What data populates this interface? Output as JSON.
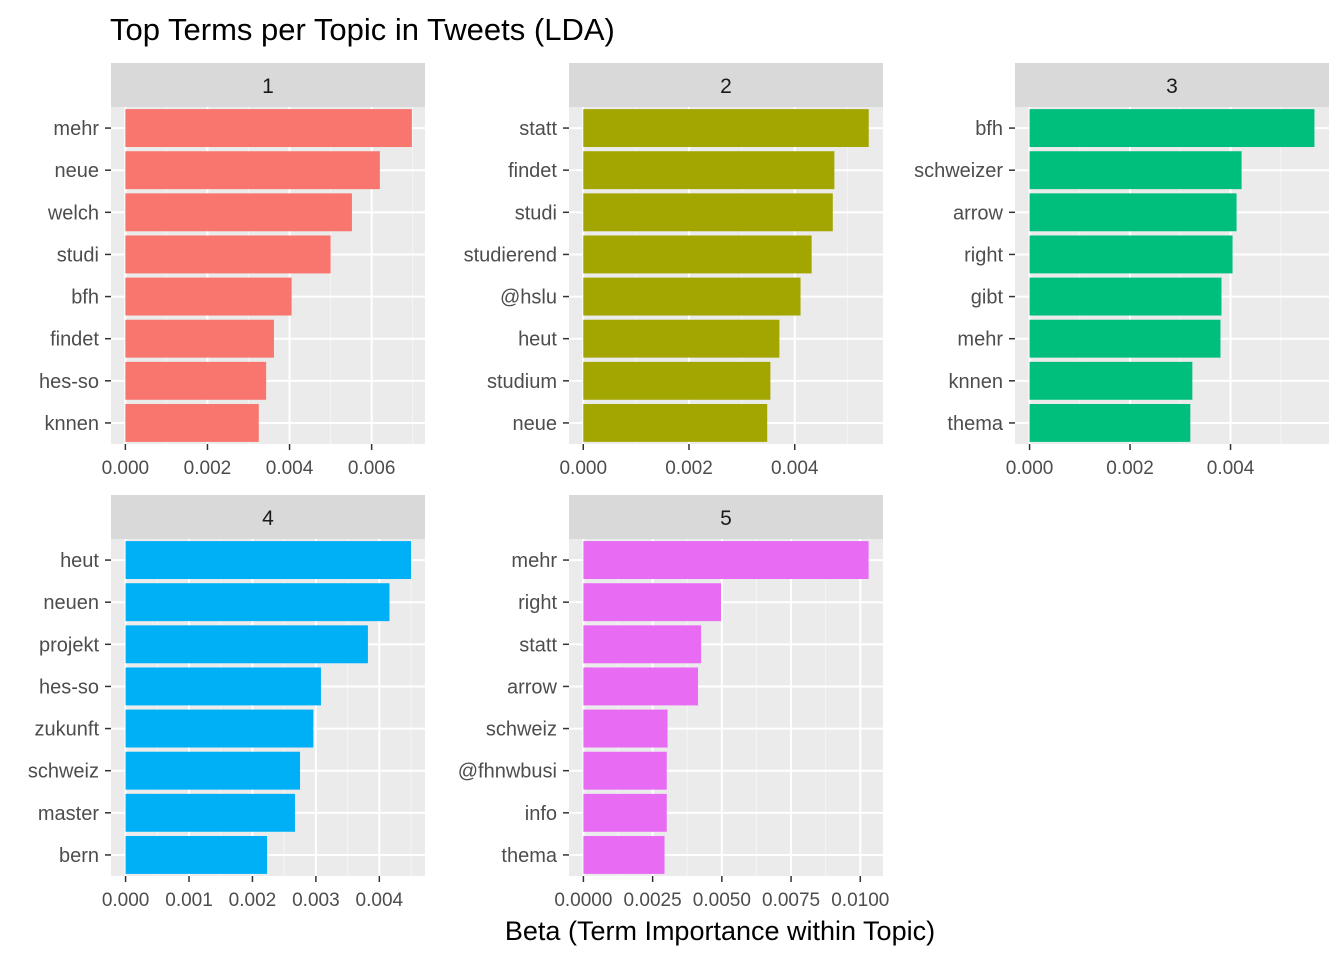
{
  "chart_data": {
    "type": "bar",
    "orientation": "horizontal",
    "title": "Top Terms per Topic in Tweets (LDA)",
    "xlabel": "Beta (Term Importance within Topic)",
    "ylabel": "",
    "legend": "none",
    "grid": true,
    "panels": [
      {
        "label": "1",
        "color": "#F8766D",
        "xlim": [
          -0.00035,
          0.0073
        ],
        "ticks": [
          0.0,
          0.002,
          0.004,
          0.006
        ],
        "tick_labels": [
          "0.000",
          "0.002",
          "0.004",
          "0.006"
        ],
        "categories": [
          "mehr",
          "neue",
          "welch",
          "studi",
          "bfh",
          "findet",
          "hes-so",
          "knnen"
        ],
        "values": [
          0.00698,
          0.0062,
          0.00552,
          0.005,
          0.00405,
          0.00362,
          0.00343,
          0.00325
        ]
      },
      {
        "label": "2",
        "color": "#A3A500",
        "xlim": [
          -0.00027,
          0.00567
        ],
        "ticks": [
          0.0,
          0.002,
          0.004
        ],
        "tick_labels": [
          "0.000",
          "0.002",
          "0.004"
        ],
        "categories": [
          "statt",
          "findet",
          "studi",
          "studierend",
          "@hslu",
          "heut",
          "studium",
          "neue"
        ],
        "values": [
          0.0054,
          0.00475,
          0.00472,
          0.00432,
          0.00411,
          0.00371,
          0.00354,
          0.00348
        ]
      },
      {
        "label": "3",
        "color": "#00BF7D",
        "xlim": [
          -0.00029,
          0.00596
        ],
        "ticks": [
          0.0,
          0.002,
          0.004
        ],
        "tick_labels": [
          "0.000",
          "0.002",
          "0.004"
        ],
        "categories": [
          "bfh",
          "schweizer",
          "arrow",
          "right",
          "gibt",
          "mehr",
          "knnen",
          "thema"
        ],
        "values": [
          0.00567,
          0.00422,
          0.00412,
          0.00404,
          0.00382,
          0.0038,
          0.00324,
          0.0032
        ]
      },
      {
        "label": "4",
        "color": "#00B0F6",
        "xlim": [
          -0.00023,
          0.00472
        ],
        "ticks": [
          0.0,
          0.001,
          0.002,
          0.003,
          0.004
        ],
        "tick_labels": [
          "0.000",
          "0.001",
          "0.002",
          "0.003",
          "0.004"
        ],
        "categories": [
          "heut",
          "neuen",
          "projekt",
          "hes-so",
          "zukunft",
          "schweiz",
          "master",
          "bern"
        ],
        "values": [
          0.0045,
          0.00416,
          0.00382,
          0.00308,
          0.00296,
          0.00275,
          0.00267,
          0.00223
        ]
      },
      {
        "label": "5",
        "color": "#E76BF3",
        "xlim": [
          -0.00052,
          0.01082
        ],
        "ticks": [
          0.0,
          0.0025,
          0.005,
          0.0075,
          0.01
        ],
        "tick_labels": [
          "0.0000",
          "0.0025",
          "0.0050",
          "0.0075",
          "0.0100"
        ],
        "categories": [
          "mehr",
          "right",
          "statt",
          "arrow",
          "schweiz",
          "@fhnwbusi",
          "info",
          "thema"
        ],
        "values": [
          0.0103,
          0.00497,
          0.00425,
          0.00414,
          0.00304,
          0.00301,
          0.00301,
          0.00293
        ]
      }
    ]
  }
}
